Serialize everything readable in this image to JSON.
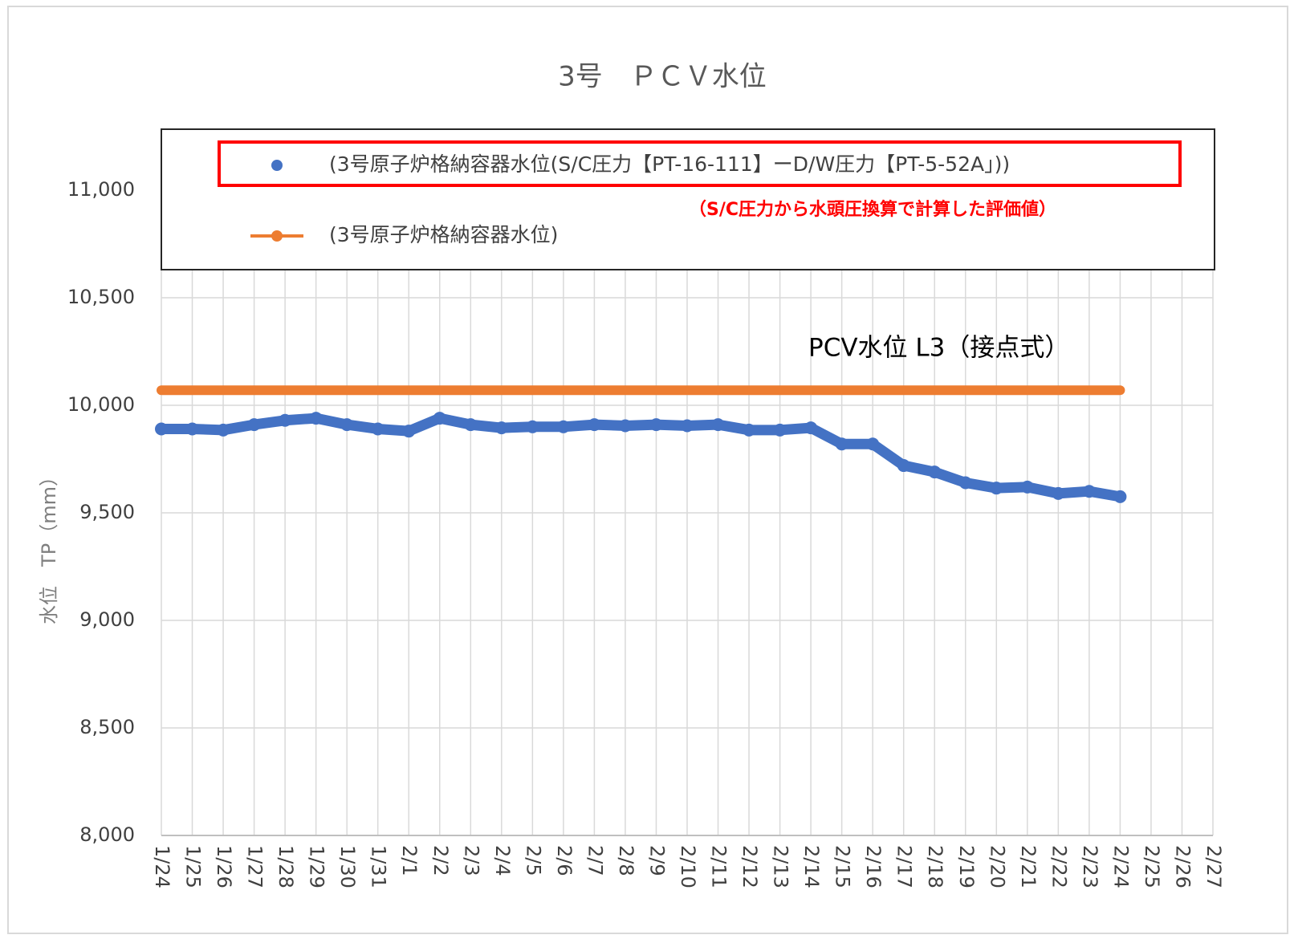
{
  "chart_data": {
    "type": "line",
    "title": "3号　ＰＣＶ水位",
    "y_label": "水位　TP（mm）",
    "annotations": [
      "（S/C圧力から水頭圧換算で計算した評価値）",
      "PCV水位 L3（接点式）"
    ],
    "categories": [
      "1/24",
      "1/25",
      "1/26",
      "1/27",
      "1/28",
      "1/29",
      "1/30",
      "1/31",
      "2/1",
      "2/2",
      "2/3",
      "2/4",
      "2/5",
      "2/6",
      "2/7",
      "2/8",
      "2/9",
      "2/10",
      "2/11",
      "2/12",
      "2/13",
      "2/14",
      "2/15",
      "2/16",
      "2/17",
      "2/18",
      "2/19",
      "2/20",
      "2/21",
      "2/22",
      "2/23",
      "2/24",
      "2/25",
      "2/26",
      "2/27"
    ],
    "series": [
      {
        "name": "(3号原子炉格納容器水位(S/C圧力【PT-16-111】ーD/W圧力【PT-5-52A」))",
        "color": "#4472c4",
        "values": [
          9890,
          9890,
          9885,
          9910,
          9930,
          9940,
          9910,
          9890,
          9880,
          9940,
          9910,
          9895,
          9900,
          9900,
          9910,
          9905,
          9910,
          9905,
          9910,
          9885,
          9885,
          9895,
          9820,
          9820,
          9720,
          9690,
          9640,
          9615,
          9620,
          9590,
          9600,
          9575,
          null,
          null,
          null
        ]
      },
      {
        "name": "(3号原子炉格納容器水位)",
        "color": "#ed7d31",
        "values": [
          10070,
          10070,
          10070,
          10070,
          10070,
          10070,
          10070,
          10070,
          10070,
          10070,
          10070,
          10070,
          10070,
          10070,
          10070,
          10070,
          10070,
          10070,
          10070,
          10070,
          10070,
          10070,
          10070,
          10070,
          10070,
          10070,
          10070,
          10070,
          10070,
          10070,
          10070,
          10070,
          null,
          null,
          null
        ]
      }
    ],
    "ylim": [
      8000,
      11250
    ],
    "yticks": [
      {
        "value": 8000,
        "label": "8,000"
      },
      {
        "value": 8500,
        "label": "8,500"
      },
      {
        "value": 9000,
        "label": "9,000"
      },
      {
        "value": 9500,
        "label": "9,500"
      },
      {
        "value": 10000,
        "label": "10,000"
      },
      {
        "value": 10500,
        "label": "10,500"
      },
      {
        "value": 11000,
        "label": "11,000"
      }
    ],
    "grid": true
  }
}
